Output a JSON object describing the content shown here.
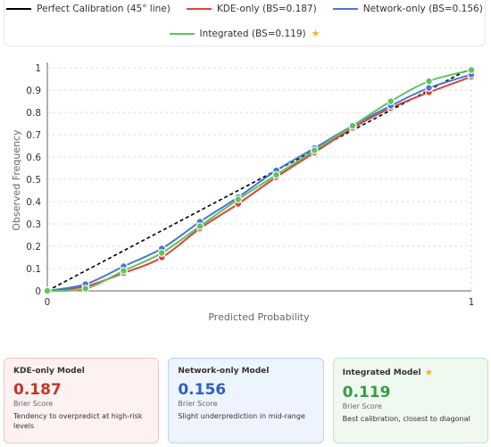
{
  "legend": {
    "perfect": "Perfect Calibration (45° line)",
    "kde": "KDE-only (BS=0.187)",
    "network": "Network-only (BS=0.156)",
    "integrated": "Integrated (BS=0.119)",
    "star_icon": "star-icon"
  },
  "colors": {
    "perfect": "#000000",
    "kde": "#d9453d",
    "network": "#4a77d4",
    "integrated": "#5ec45e"
  },
  "chart_data": {
    "type": "line",
    "xlabel": "Predicted Probability",
    "ylabel": "Observed Frequency",
    "xlim": [
      0,
      1
    ],
    "ylim": [
      0,
      1
    ],
    "x_ticks": [
      "0",
      "1"
    ],
    "y_ticks": [
      "0",
      "0.1",
      "0.2",
      "0.3",
      "0.4",
      "0.5",
      "0.6",
      "0.7",
      "0.8",
      "0.9",
      "1"
    ],
    "grid": true,
    "x": [
      0,
      0.09,
      0.18,
      0.27,
      0.36,
      0.45,
      0.54,
      0.63,
      0.72,
      0.81,
      0.9,
      1.0
    ],
    "series": [
      {
        "name": "Perfect Calibration (45° line)",
        "key": "perfect",
        "dashed": true,
        "markers": false,
        "x": [
          0,
          1
        ],
        "values": [
          0,
          1
        ]
      },
      {
        "name": "KDE-only (BS=0.187)",
        "key": "kde",
        "values": [
          0,
          0.02,
          0.08,
          0.15,
          0.28,
          0.39,
          0.51,
          0.62,
          0.73,
          0.82,
          0.89,
          0.96
        ]
      },
      {
        "name": "Network-only (BS=0.156)",
        "key": "network",
        "values": [
          0,
          0.03,
          0.11,
          0.19,
          0.31,
          0.42,
          0.54,
          0.64,
          0.74,
          0.83,
          0.91,
          0.97
        ]
      },
      {
        "name": "Integrated (BS=0.119)",
        "key": "integrated",
        "values": [
          0,
          0.01,
          0.09,
          0.17,
          0.29,
          0.41,
          0.52,
          0.63,
          0.74,
          0.85,
          0.94,
          0.99
        ]
      }
    ]
  },
  "cards": [
    {
      "title": "KDE-only Model",
      "value": "0.187",
      "sub": "Brier Score",
      "desc": "Tendency to overpredict at high-risk levels",
      "color": "#c0392b",
      "bg": "#fdf1f1",
      "border": "#f3c4c4"
    },
    {
      "title": "Network-only Model",
      "value": "0.156",
      "sub": "Brier Score",
      "desc": "Slight underprediction in mid-range",
      "color": "#2f5fc4",
      "bg": "#eef4fd",
      "border": "#bcd2f3"
    },
    {
      "title": "Integrated Model",
      "value": "0.119",
      "sub": "Brier Score",
      "desc": "Best calibration, closest to diagonal",
      "color": "#3a9a48",
      "bg": "#eff9ef",
      "border": "#bfe5c3",
      "star": true
    }
  ]
}
